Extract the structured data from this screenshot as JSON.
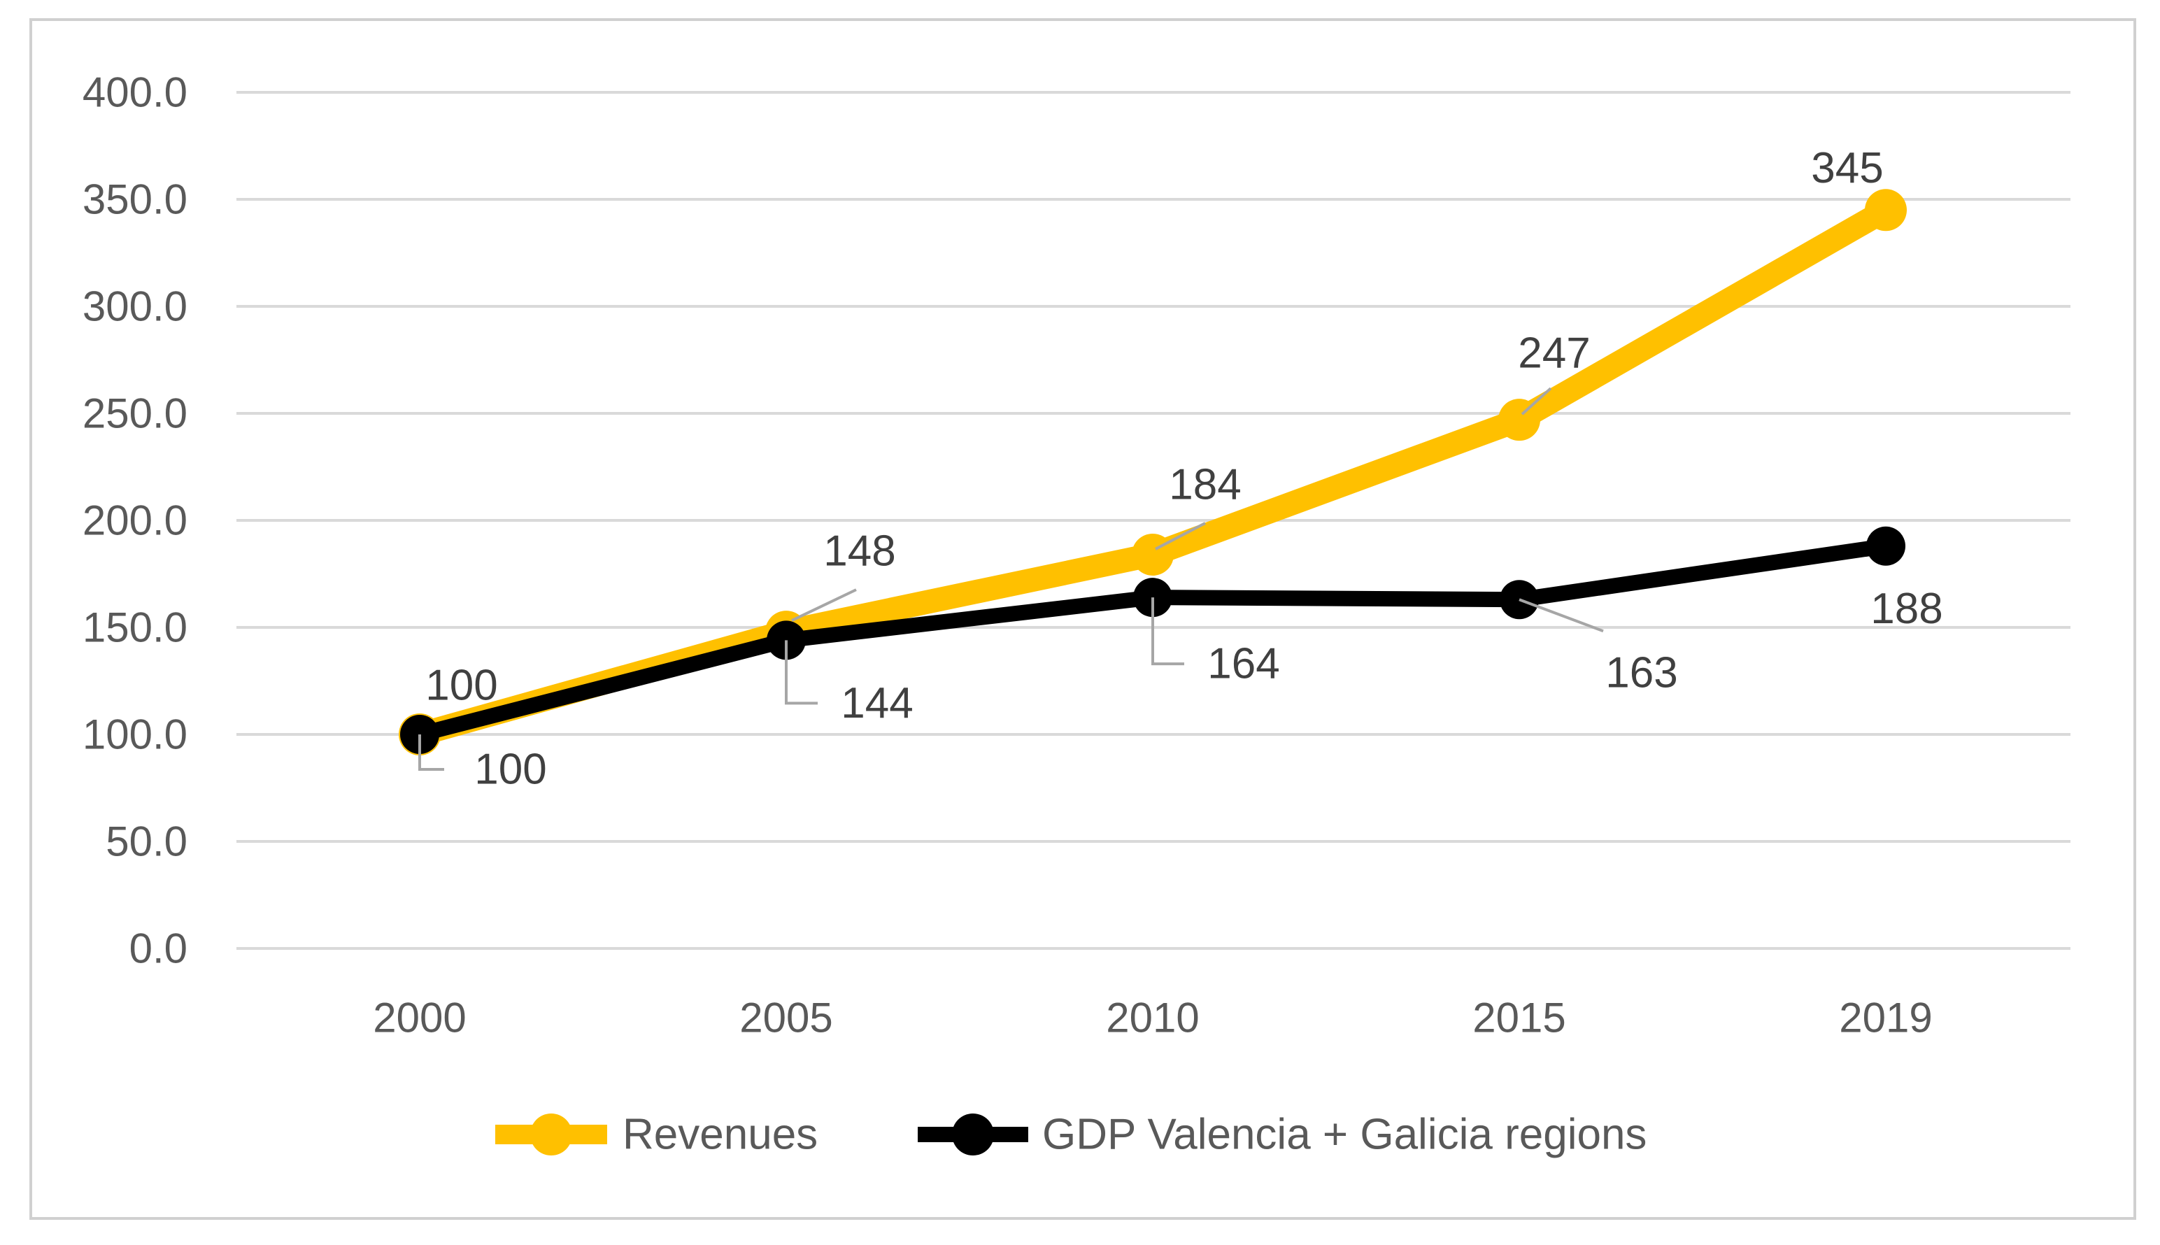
{
  "chart_data": {
    "type": "line",
    "title": "",
    "xlabel": "",
    "ylabel": "",
    "categories": [
      "2000",
      "2005",
      "2010",
      "2015",
      "2019"
    ],
    "ylim": [
      0,
      400
    ],
    "ytick_step": 50,
    "ytick_labels": [
      "0.0",
      "50.0",
      "100.0",
      "150.0",
      "200.0",
      "250.0",
      "300.0",
      "350.0",
      "400.0"
    ],
    "grid": true,
    "legend_position": "bottom",
    "series": [
      {
        "name": "Revenues",
        "color": "#FFC000",
        "values": [
          100,
          148,
          184,
          247,
          345
        ],
        "labels": [
          "100",
          "148",
          "184",
          "247",
          "345"
        ]
      },
      {
        "name": "GDP Valencia + Galicia regions",
        "color": "#000000",
        "values": [
          100,
          144,
          164,
          163,
          188
        ],
        "labels": [
          "100",
          "144",
          "164",
          "163",
          "188"
        ]
      }
    ]
  }
}
